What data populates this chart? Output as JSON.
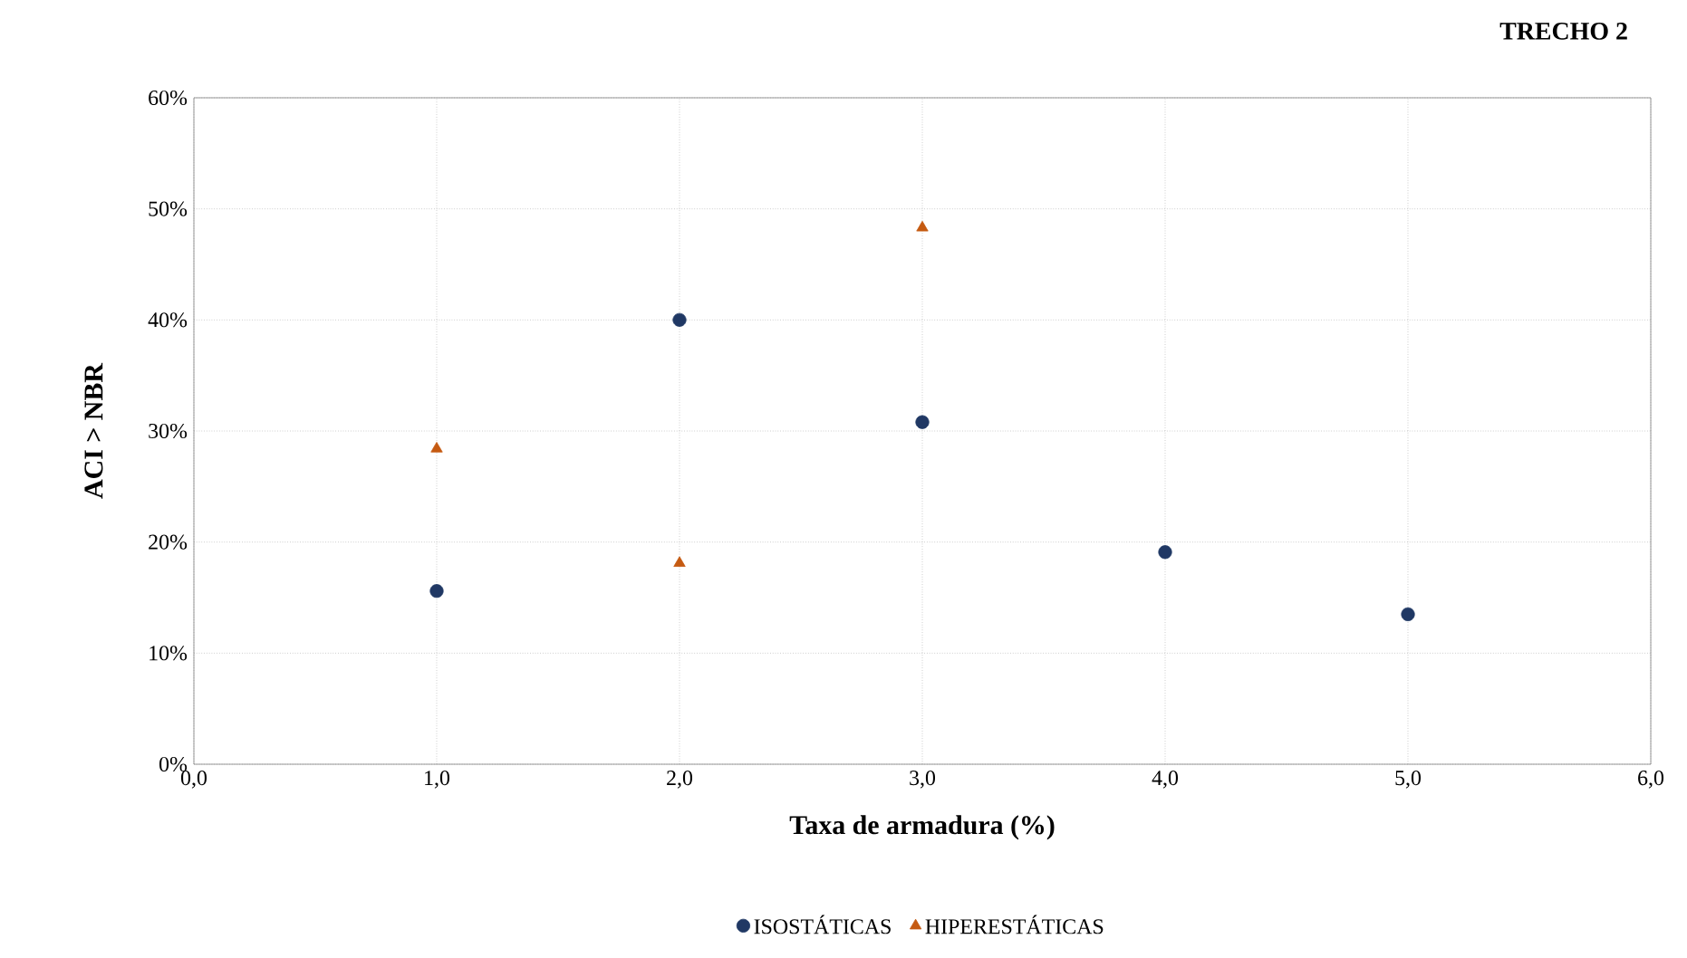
{
  "chart_data": {
    "type": "scatter",
    "title": "TRECHO 2",
    "xlabel": "Taxa de armadura (%)",
    "ylabel": "ACI > NBR",
    "series": [
      {
        "name": "ISOSTÁTICAS",
        "color": "#203864",
        "marker": "circle",
        "x": [
          1,
          2,
          3,
          4,
          5
        ],
        "values": [
          15.6,
          40.0,
          30.8,
          19.1,
          13.5
        ]
      },
      {
        "name": "HIPERESTÁTICAS",
        "color": "#c55a11",
        "marker": "triangle",
        "x": [
          1,
          2,
          3
        ],
        "values": [
          28.4,
          18.1,
          48.3
        ]
      }
    ],
    "xlim": [
      0,
      6
    ],
    "ylim": [
      0,
      60
    ],
    "xticks": [
      {
        "value": 0,
        "label": "0,0"
      },
      {
        "value": 1,
        "label": "1,0"
      },
      {
        "value": 2,
        "label": "2,0"
      },
      {
        "value": 3,
        "label": "3,0"
      },
      {
        "value": 4,
        "label": "4,0"
      },
      {
        "value": 5,
        "label": "5,0"
      },
      {
        "value": 6,
        "label": "6,0"
      }
    ],
    "yticks": [
      {
        "value": 0,
        "label": "0%"
      },
      {
        "value": 10,
        "label": "10%"
      },
      {
        "value": 20,
        "label": "20%"
      },
      {
        "value": 30,
        "label": "30%"
      },
      {
        "value": 40,
        "label": "40%"
      },
      {
        "value": 50,
        "label": "50%"
      },
      {
        "value": 60,
        "label": "60%"
      }
    ],
    "grid": true,
    "legend": "bottom"
  }
}
